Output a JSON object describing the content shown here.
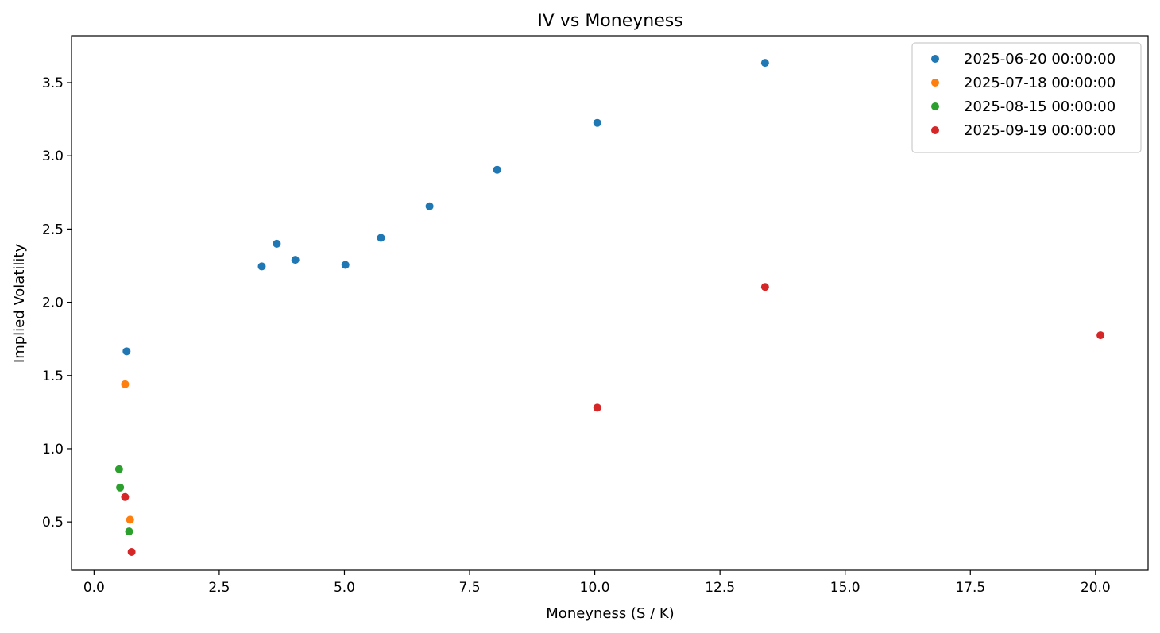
{
  "chart_data": {
    "type": "scatter",
    "title": "IV vs Moneyness",
    "xlabel": "Moneyness (S / K)",
    "ylabel": "Implied Volatility",
    "xlim": [
      -0.45,
      21.05
    ],
    "ylim": [
      0.17,
      3.82
    ],
    "xticks": [
      0.0,
      2.5,
      5.0,
      7.5,
      10.0,
      12.5,
      15.0,
      17.5,
      20.0
    ],
    "xtick_labels": [
      "0.0",
      "2.5",
      "5.0",
      "7.5",
      "10.0",
      "12.5",
      "15.0",
      "17.5",
      "20.0"
    ],
    "yticks": [
      0.5,
      1.0,
      1.5,
      2.0,
      2.5,
      3.0,
      3.5
    ],
    "ytick_labels": [
      "0.5",
      "1.0",
      "1.5",
      "2.0",
      "2.5",
      "3.0",
      "3.5"
    ],
    "grid": false,
    "legend_position": "top-right",
    "series": [
      {
        "name": "2025-06-20 00:00:00",
        "color": "#1f77b4",
        "points": [
          [
            0.65,
            1.665
          ],
          [
            3.35,
            2.245
          ],
          [
            3.65,
            2.4
          ],
          [
            4.02,
            2.29
          ],
          [
            5.02,
            2.255
          ],
          [
            5.73,
            2.44
          ],
          [
            6.7,
            2.655
          ],
          [
            8.05,
            2.905
          ],
          [
            10.05,
            3.225
          ],
          [
            13.4,
            3.635
          ]
        ]
      },
      {
        "name": "2025-07-18 00:00:00",
        "color": "#ff7f0e",
        "points": [
          [
            0.62,
            1.44
          ],
          [
            0.72,
            0.515
          ]
        ]
      },
      {
        "name": "2025-08-15 00:00:00",
        "color": "#2ca02c",
        "points": [
          [
            0.5,
            0.86
          ],
          [
            0.52,
            0.735
          ],
          [
            0.7,
            0.435
          ]
        ]
      },
      {
        "name": "2025-09-19 00:00:00",
        "color": "#d62728",
        "points": [
          [
            0.62,
            0.67
          ],
          [
            0.75,
            0.295
          ],
          [
            10.05,
            1.28
          ],
          [
            13.4,
            2.105
          ],
          [
            20.1,
            1.775
          ]
        ]
      }
    ]
  }
}
